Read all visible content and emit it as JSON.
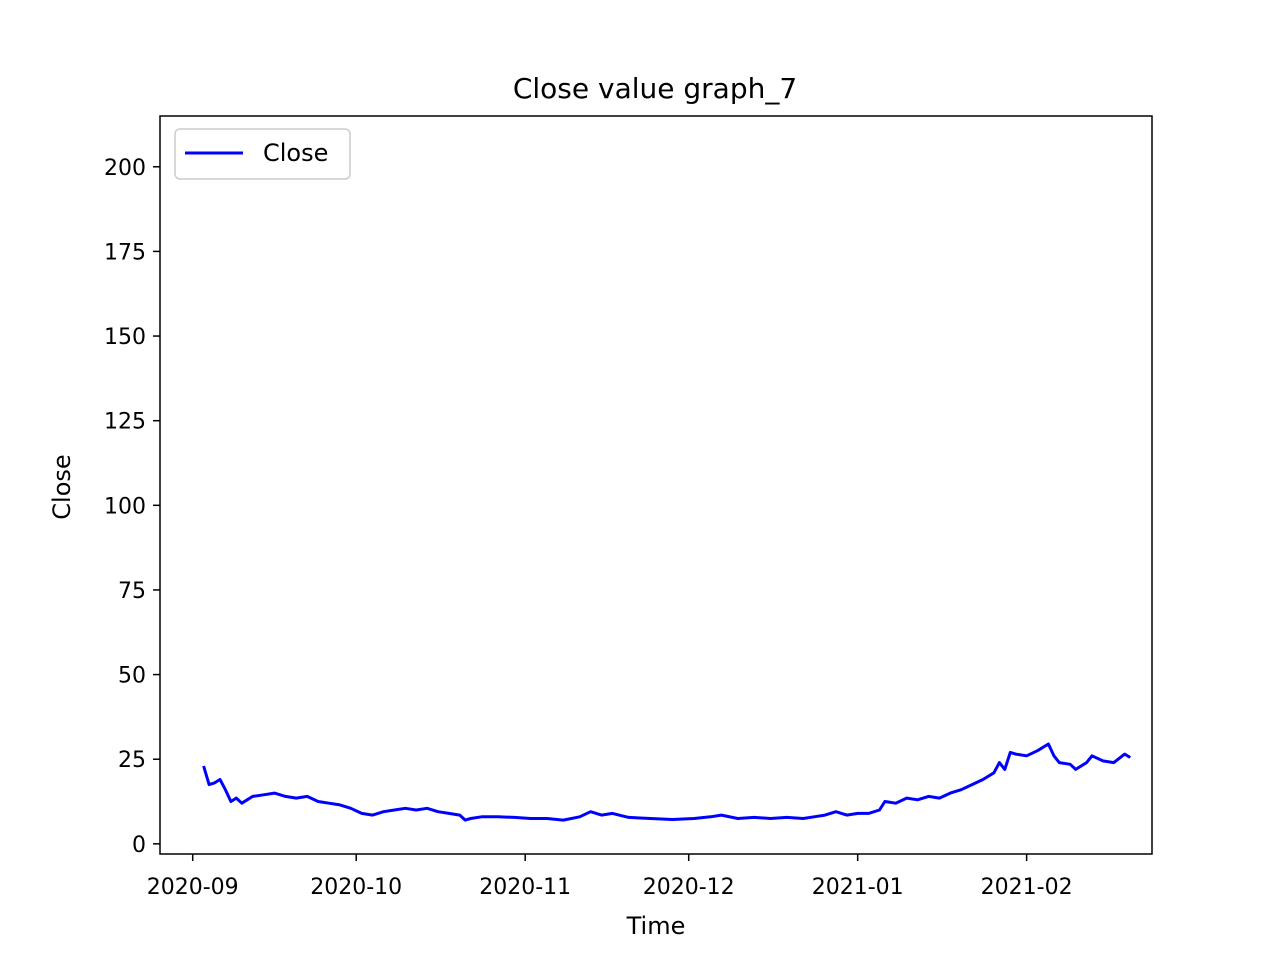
{
  "chart_data": {
    "type": "line",
    "title": "Close value graph_7",
    "xlabel": "Time",
    "ylabel": "Close",
    "x_range": [
      "2020-08-26",
      "2021-02-24"
    ],
    "ylim": [
      -3,
      215
    ],
    "x_ticks": [
      "2020-09",
      "2020-10",
      "2020-11",
      "2020-12",
      "2021-01",
      "2021-02"
    ],
    "x_tick_dates": [
      "2020-09-01",
      "2020-10-01",
      "2020-11-01",
      "2020-12-01",
      "2021-01-01",
      "2021-02-01"
    ],
    "y_ticks": [
      0,
      25,
      50,
      75,
      100,
      125,
      150,
      175,
      200
    ],
    "legend": {
      "position": "upper-left",
      "entries": [
        "Close"
      ]
    },
    "grid": false,
    "series": [
      {
        "name": "Close",
        "color": "#0000ff",
        "points": [
          [
            "2020-09-03",
            23.0
          ],
          [
            "2020-09-04",
            17.5
          ],
          [
            "2020-09-05",
            18.0
          ],
          [
            "2020-09-06",
            19.0
          ],
          [
            "2020-09-07",
            16.0
          ],
          [
            "2020-09-08",
            12.5
          ],
          [
            "2020-09-09",
            13.5
          ],
          [
            "2020-09-10",
            12.0
          ],
          [
            "2020-09-11",
            13.0
          ],
          [
            "2020-09-12",
            14.0
          ],
          [
            "2020-09-14",
            14.5
          ],
          [
            "2020-09-16",
            15.0
          ],
          [
            "2020-09-18",
            14.0
          ],
          [
            "2020-09-20",
            13.5
          ],
          [
            "2020-09-22",
            14.0
          ],
          [
            "2020-09-24",
            12.5
          ],
          [
            "2020-09-26",
            12.0
          ],
          [
            "2020-09-28",
            11.5
          ],
          [
            "2020-09-30",
            10.5
          ],
          [
            "2020-10-02",
            9.0
          ],
          [
            "2020-10-04",
            8.5
          ],
          [
            "2020-10-06",
            9.5
          ],
          [
            "2020-10-08",
            10.0
          ],
          [
            "2020-10-10",
            10.5
          ],
          [
            "2020-10-12",
            10.0
          ],
          [
            "2020-10-14",
            10.5
          ],
          [
            "2020-10-16",
            9.5
          ],
          [
            "2020-10-18",
            9.0
          ],
          [
            "2020-10-20",
            8.5
          ],
          [
            "2020-10-21",
            7.0
          ],
          [
            "2020-10-22",
            7.5
          ],
          [
            "2020-10-24",
            8.0
          ],
          [
            "2020-10-27",
            8.0
          ],
          [
            "2020-10-30",
            7.8
          ],
          [
            "2020-11-02",
            7.5
          ],
          [
            "2020-11-05",
            7.5
          ],
          [
            "2020-11-08",
            7.0
          ],
          [
            "2020-11-11",
            8.0
          ],
          [
            "2020-11-13",
            9.5
          ],
          [
            "2020-11-15",
            8.5
          ],
          [
            "2020-11-17",
            9.0
          ],
          [
            "2020-11-20",
            7.8
          ],
          [
            "2020-11-24",
            7.5
          ],
          [
            "2020-11-28",
            7.2
          ],
          [
            "2020-12-02",
            7.5
          ],
          [
            "2020-12-05",
            8.0
          ],
          [
            "2020-12-07",
            8.5
          ],
          [
            "2020-12-10",
            7.5
          ],
          [
            "2020-12-13",
            7.8
          ],
          [
            "2020-12-16",
            7.5
          ],
          [
            "2020-12-19",
            7.8
          ],
          [
            "2020-12-22",
            7.5
          ],
          [
            "2020-12-24",
            8.0
          ],
          [
            "2020-12-26",
            8.5
          ],
          [
            "2020-12-28",
            9.5
          ],
          [
            "2020-12-30",
            8.5
          ],
          [
            "2021-01-01",
            9.0
          ],
          [
            "2021-01-03",
            9.0
          ],
          [
            "2021-01-05",
            10.0
          ],
          [
            "2021-01-06",
            12.5
          ],
          [
            "2021-01-08",
            12.0
          ],
          [
            "2021-01-10",
            13.5
          ],
          [
            "2021-01-12",
            13.0
          ],
          [
            "2021-01-14",
            14.0
          ],
          [
            "2021-01-16",
            13.5
          ],
          [
            "2021-01-18",
            15.0
          ],
          [
            "2021-01-20",
            16.0
          ],
          [
            "2021-01-22",
            17.5
          ],
          [
            "2021-01-24",
            19.0
          ],
          [
            "2021-01-26",
            21.0
          ],
          [
            "2021-01-27",
            24.0
          ],
          [
            "2021-01-28",
            22.0
          ],
          [
            "2021-01-29",
            27.0
          ],
          [
            "2021-01-30",
            26.5
          ],
          [
            "2021-02-01",
            26.0
          ],
          [
            "2021-02-03",
            27.5
          ],
          [
            "2021-02-05",
            29.5
          ],
          [
            "2021-02-06",
            26.0
          ],
          [
            "2021-02-07",
            24.0
          ],
          [
            "2021-02-09",
            23.5
          ],
          [
            "2021-02-10",
            22.0
          ],
          [
            "2021-02-12",
            24.0
          ],
          [
            "2021-02-13",
            26.0
          ],
          [
            "2021-02-15",
            24.5
          ],
          [
            "2021-02-17",
            24.0
          ],
          [
            "2021-02-19",
            26.5
          ],
          [
            "2021-02-20",
            25.5
          ]
        ]
      }
    ]
  }
}
